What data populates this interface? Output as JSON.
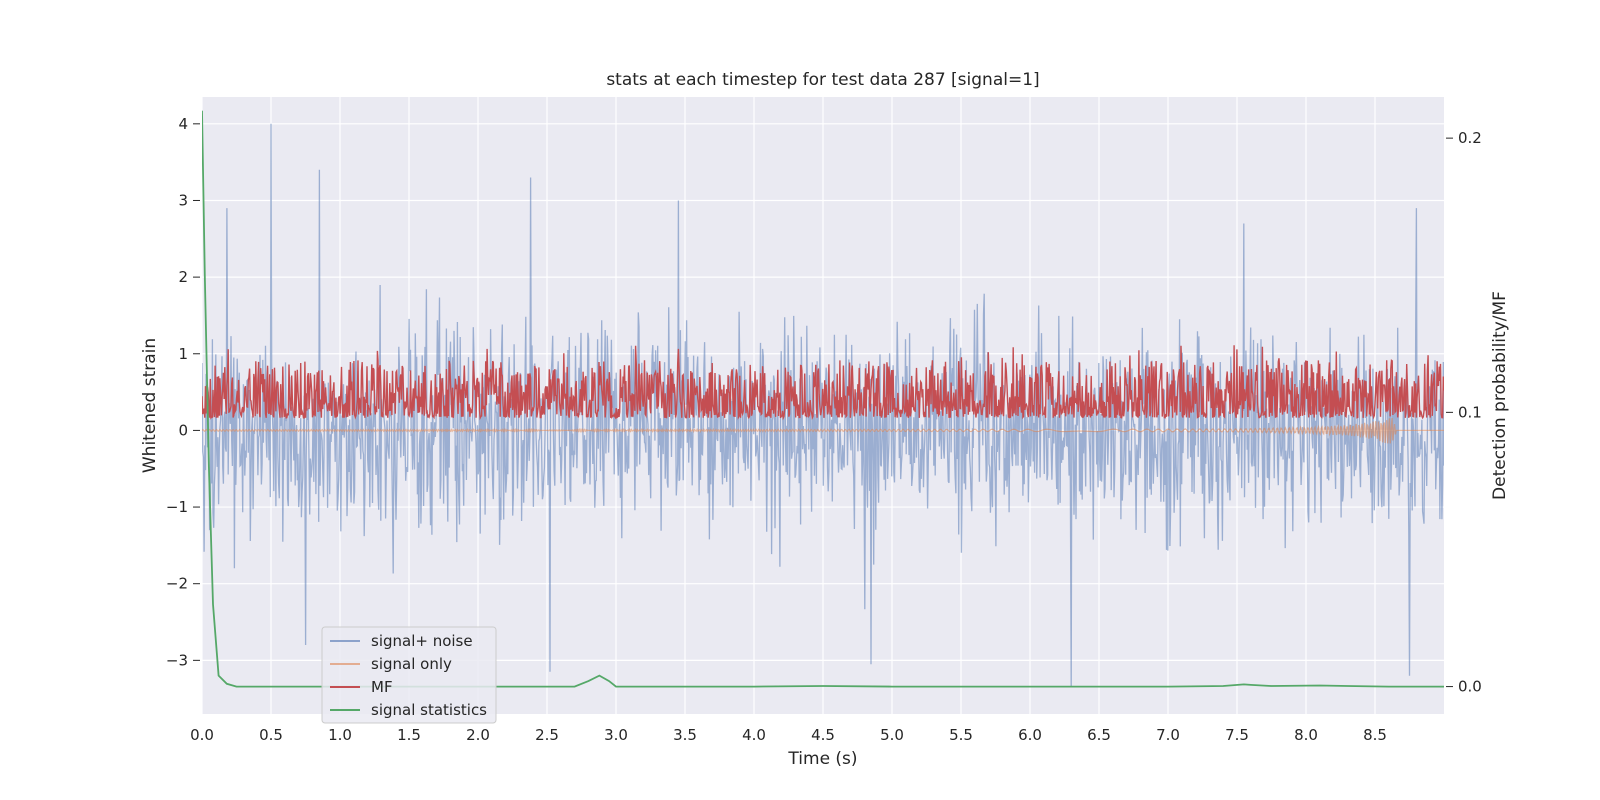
{
  "chart_data": {
    "type": "line",
    "title": "stats at each timestep for test data 287 [signal=1]",
    "xlabel": "Time (s)",
    "ylabel": "Whitened strain",
    "y2label": "Detection probability/MF",
    "xlim": [
      0,
      9.0
    ],
    "ylim": [
      -3.7,
      4.35
    ],
    "y2lim": [
      -0.01,
      0.215
    ],
    "xticks": [
      "0.0",
      "0.5",
      "1.0",
      "1.5",
      "2.0",
      "2.5",
      "3.0",
      "3.5",
      "4.0",
      "4.5",
      "5.0",
      "5.5",
      "6.0",
      "6.5",
      "7.0",
      "7.5",
      "8.0",
      "8.5"
    ],
    "yticks": [
      "−3",
      "−2",
      "−1",
      "0",
      "1",
      "2",
      "3",
      "4"
    ],
    "y2ticks": [
      "0.0",
      "0.1",
      "0.2"
    ],
    "grid": true,
    "legend_position": "lower-left",
    "colors": {
      "background": "#eaeaf2",
      "grid": "#ffffff",
      "signal_noise": "#4c72b0",
      "signal_only": "#dd8452",
      "mf": "#c44e52",
      "signal_statistics": "#55a868"
    },
    "series": [
      {
        "name": "signal+ noise",
        "axis": "left",
        "style": "dense_noise",
        "sample_count": 1800,
        "typical_range": [
          -1.7,
          1.7
        ],
        "peak_points": [
          [
            0.5,
            4.0
          ],
          [
            0.85,
            3.4
          ],
          [
            2.38,
            3.3
          ],
          [
            0.18,
            2.9
          ],
          [
            3.45,
            3.0
          ],
          [
            8.8,
            2.9
          ],
          [
            7.55,
            2.7
          ],
          [
            6.3,
            -3.35
          ],
          [
            2.52,
            -3.15
          ],
          [
            4.85,
            -3.05
          ],
          [
            8.75,
            -3.2
          ],
          [
            0.75,
            -2.8
          ]
        ]
      },
      {
        "name": "signal only",
        "axis": "left",
        "style": "chirp",
        "x": [
          0.0,
          6.5,
          7.5,
          8.0,
          8.3,
          8.5,
          8.62,
          8.66
        ],
        "amplitude": [
          0.01,
          0.015,
          0.02,
          0.04,
          0.07,
          0.12,
          0.2,
          0.0
        ]
      },
      {
        "name": "MF",
        "axis": "right",
        "style": "dense_noise",
        "sample_count": 1800,
        "baseline": 0.098,
        "typical_range": [
          0.098,
          0.118
        ],
        "peak": 0.125
      },
      {
        "name": "signal statistics",
        "axis": "right",
        "x": [
          0.0,
          0.02,
          0.05,
          0.08,
          0.12,
          0.18,
          0.25,
          0.4,
          1.0,
          2.0,
          2.7,
          2.8,
          2.88,
          2.95,
          3.0,
          3.1,
          4.0,
          4.5,
          5.0,
          6.0,
          7.0,
          7.4,
          7.55,
          7.6,
          7.75,
          8.1,
          8.3,
          8.6,
          9.0
        ],
        "values": [
          0.21,
          0.15,
          0.08,
          0.03,
          0.004,
          0.001,
          0.0,
          0.0,
          0.0,
          0.0,
          0.0,
          0.002,
          0.004,
          0.002,
          0.0,
          0.0,
          0.0,
          0.0002,
          0.0,
          0.0,
          0.0,
          0.0002,
          0.0008,
          0.0006,
          0.0002,
          0.0004,
          0.0002,
          0.0,
          0.0
        ]
      }
    ]
  }
}
